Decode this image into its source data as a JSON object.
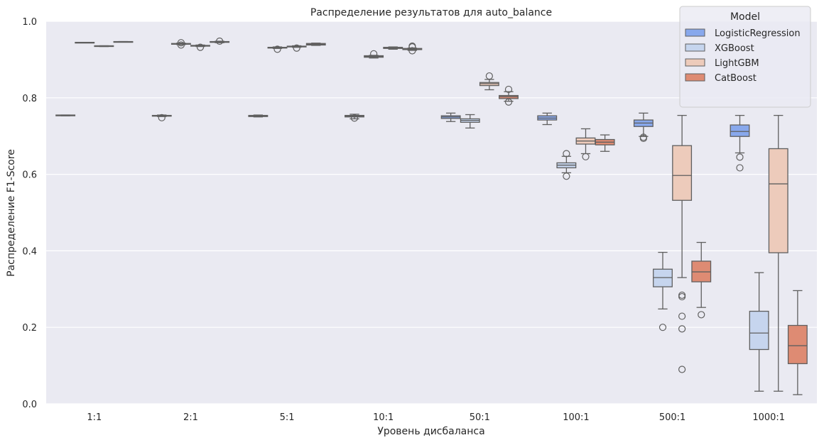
{
  "chart_data": {
    "type": "box",
    "title": "Распределение результатов для auto_balance",
    "xlabel": "Уровень дисбаланса",
    "ylabel": "Распределение F1-Score",
    "ylim": [
      0,
      1.0
    ],
    "yticks": [
      "0.0",
      "0.2",
      "0.4",
      "0.6",
      "0.8",
      "1.0"
    ],
    "grid": true,
    "legend": {
      "title": "Model",
      "placement": "top-right"
    },
    "categories": [
      "1:1",
      "2:1",
      "5:1",
      "10:1",
      "50:1",
      "100:1",
      "500:1",
      "1000:1"
    ],
    "series": [
      {
        "name": "LogisticRegression",
        "color": "#88a8ec",
        "boxes": [
          {
            "whislo": 0.753,
            "q1": 0.753,
            "med": 0.754,
            "q3": 0.755,
            "whishi": 0.755,
            "outliers": []
          },
          {
            "whislo": 0.751,
            "q1": 0.752,
            "med": 0.753,
            "q3": 0.754,
            "whishi": 0.755,
            "outliers": [
              0.748
            ]
          },
          {
            "whislo": 0.75,
            "q1": 0.751,
            "med": 0.752,
            "q3": 0.754,
            "whishi": 0.755,
            "outliers": []
          },
          {
            "whislo": 0.745,
            "q1": 0.75,
            "med": 0.752,
            "q3": 0.754,
            "whishi": 0.757,
            "outliers": [
              0.747
            ]
          },
          {
            "whislo": 0.738,
            "q1": 0.746,
            "med": 0.75,
            "q3": 0.753,
            "whishi": 0.76,
            "outliers": []
          },
          {
            "whislo": 0.73,
            "q1": 0.742,
            "med": 0.747,
            "q3": 0.753,
            "whishi": 0.76,
            "outliers": []
          },
          {
            "whislo": 0.699,
            "q1": 0.725,
            "med": 0.734,
            "q3": 0.742,
            "whishi": 0.76,
            "outliers": [
              0.694,
              0.697
            ]
          },
          {
            "whislo": 0.656,
            "q1": 0.699,
            "med": 0.712,
            "q3": 0.729,
            "whishi": 0.754,
            "outliers": [
              0.645,
              0.617
            ]
          }
        ]
      },
      {
        "name": "XGBoost",
        "color": "#c6d5ee",
        "boxes": [
          {
            "whislo": 0.944,
            "q1": 0.944,
            "med": 0.944,
            "q3": 0.945,
            "whishi": 0.945,
            "outliers": []
          },
          {
            "whislo": 0.939,
            "q1": 0.94,
            "med": 0.941,
            "q3": 0.942,
            "whishi": 0.943,
            "outliers": [
              0.944,
              0.938
            ]
          },
          {
            "whislo": 0.929,
            "q1": 0.93,
            "med": 0.931,
            "q3": 0.932,
            "whishi": 0.933,
            "outliers": [
              0.927
            ]
          },
          {
            "whislo": 0.904,
            "q1": 0.906,
            "med": 0.908,
            "q3": 0.91,
            "whishi": 0.911,
            "outliers": [
              0.915
            ]
          },
          {
            "whislo": 0.721,
            "q1": 0.736,
            "med": 0.741,
            "q3": 0.745,
            "whishi": 0.756,
            "outliers": []
          },
          {
            "whislo": 0.604,
            "q1": 0.617,
            "med": 0.624,
            "q3": 0.63,
            "whishi": 0.647,
            "outliers": [
              0.654,
              0.595
            ]
          },
          {
            "whislo": 0.248,
            "q1": 0.306,
            "med": 0.33,
            "q3": 0.352,
            "whishi": 0.396,
            "outliers": [
              0.2
            ]
          },
          {
            "whislo": 0.033,
            "q1": 0.142,
            "med": 0.185,
            "q3": 0.242,
            "whishi": 0.343,
            "outliers": []
          }
        ]
      },
      {
        "name": "LightGBM",
        "color": "#edcbbb",
        "boxes": [
          {
            "whislo": 0.934,
            "q1": 0.935,
            "med": 0.935,
            "q3": 0.936,
            "whishi": 0.936,
            "outliers": []
          },
          {
            "whislo": 0.934,
            "q1": 0.935,
            "med": 0.936,
            "q3": 0.937,
            "whishi": 0.938,
            "outliers": [
              0.932
            ]
          },
          {
            "whislo": 0.932,
            "q1": 0.933,
            "med": 0.934,
            "q3": 0.935,
            "whishi": 0.936,
            "outliers": [
              0.93
            ]
          },
          {
            "whislo": 0.927,
            "q1": 0.929,
            "med": 0.93,
            "q3": 0.932,
            "whishi": 0.933,
            "outliers": []
          },
          {
            "whislo": 0.821,
            "q1": 0.832,
            "med": 0.837,
            "q3": 0.84,
            "whishi": 0.848,
            "outliers": [
              0.857
            ]
          },
          {
            "whislo": 0.654,
            "q1": 0.679,
            "med": 0.687,
            "q3": 0.695,
            "whishi": 0.719,
            "outliers": [
              0.646
            ]
          },
          {
            "whislo": 0.33,
            "q1": 0.532,
            "med": 0.597,
            "q3": 0.675,
            "whishi": 0.754,
            "outliers": [
              0.284,
              0.28,
              0.229,
              0.196,
              0.09
            ]
          },
          {
            "whislo": 0.033,
            "q1": 0.395,
            "med": 0.575,
            "q3": 0.667,
            "whishi": 0.754,
            "outliers": []
          }
        ]
      },
      {
        "name": "CatBoost",
        "color": "#de8b73",
        "boxes": [
          {
            "whislo": 0.946,
            "q1": 0.946,
            "med": 0.946,
            "q3": 0.947,
            "whishi": 0.947,
            "outliers": []
          },
          {
            "whislo": 0.944,
            "q1": 0.945,
            "med": 0.946,
            "q3": 0.947,
            "whishi": 0.948,
            "outliers": [
              0.948
            ]
          },
          {
            "whislo": 0.937,
            "q1": 0.938,
            "med": 0.94,
            "q3": 0.942,
            "whishi": 0.943,
            "outliers": []
          },
          {
            "whislo": 0.924,
            "q1": 0.926,
            "med": 0.927,
            "q3": 0.929,
            "whishi": 0.93,
            "outliers": [
              0.935,
              0.933,
              0.923
            ]
          },
          {
            "whislo": 0.791,
            "q1": 0.798,
            "med": 0.803,
            "q3": 0.806,
            "whishi": 0.816,
            "outliers": [
              0.822,
              0.789
            ]
          },
          {
            "whislo": 0.66,
            "q1": 0.677,
            "med": 0.684,
            "q3": 0.691,
            "whishi": 0.703,
            "outliers": []
          },
          {
            "whislo": 0.252,
            "q1": 0.319,
            "med": 0.345,
            "q3": 0.373,
            "whishi": 0.422,
            "outliers": [
              0.233
            ]
          },
          {
            "whislo": 0.024,
            "q1": 0.105,
            "med": 0.152,
            "q3": 0.205,
            "whishi": 0.296,
            "outliers": []
          }
        ]
      }
    ]
  }
}
